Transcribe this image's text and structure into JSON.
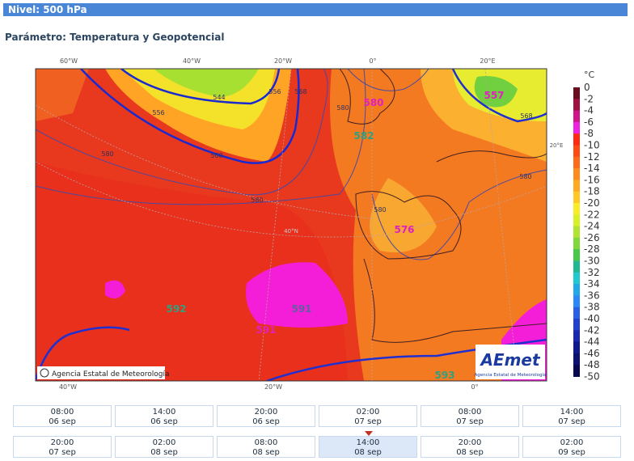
{
  "header": {
    "title": "Nivel: 500 hPa"
  },
  "parameter": "Parámetro: Temperatura y Geopotencial",
  "map": {
    "lon_labels_top": [
      "60°W",
      "40°W",
      "20°W",
      "0°",
      "20°E"
    ],
    "lon_labels_bottom": [
      "40°W",
      "20°W",
      "0°"
    ],
    "lat_labels": [
      "20°E",
      "40°N"
    ],
    "contour_labels": [
      "544",
      "556",
      "556",
      "568",
      "568",
      "580",
      "580",
      "580",
      "580",
      "568",
      "580"
    ],
    "center_labels": [
      "580",
      "582",
      "557",
      "576",
      "592",
      "591",
      "591",
      "593"
    ],
    "credit": "Agencia Estatal de Meteorología",
    "logo": "AEmet",
    "logo_subtitle": "Agencia Estatal de Meteorología"
  },
  "colorbar": {
    "unit": "°C",
    "labels": [
      0,
      -2,
      -4,
      -6,
      -8,
      -10,
      -12,
      -14,
      -16,
      -18,
      -20,
      -22,
      -24,
      -26,
      -28,
      -30,
      -32,
      -34,
      -36,
      -38,
      -40,
      -42,
      -44,
      -46,
      -48,
      -50
    ],
    "colors": [
      "#6a0d1e",
      "#a01040",
      "#d0158a",
      "#f020e0",
      "#ff2a10",
      "#ff4a14",
      "#ff6a1a",
      "#ff8a1e",
      "#ffa822",
      "#ffc826",
      "#f8ec28",
      "#d8f028",
      "#b0e430",
      "#80d83a",
      "#48c848",
      "#20b890",
      "#20c8d0",
      "#20a8e8",
      "#2a88f8",
      "#2a60e8",
      "#2040d0",
      "#1828b0",
      "#101890",
      "#0c1070",
      "#080850"
    ]
  },
  "times": [
    {
      "time": "08:00",
      "date": "06 sep"
    },
    {
      "time": "14:00",
      "date": "06 sep"
    },
    {
      "time": "20:00",
      "date": "06 sep"
    },
    {
      "time": "02:00",
      "date": "07 sep"
    },
    {
      "time": "08:00",
      "date": "07 sep"
    },
    {
      "time": "14:00",
      "date": "07 sep"
    },
    {
      "time": "20:00",
      "date": "07 sep"
    },
    {
      "time": "02:00",
      "date": "08 sep"
    },
    {
      "time": "08:00",
      "date": "08 sep"
    },
    {
      "time": "14:00",
      "date": "08 sep"
    },
    {
      "time": "20:00",
      "date": "08 sep"
    },
    {
      "time": "02:00",
      "date": "09 sep"
    }
  ],
  "selected_time": 9
}
